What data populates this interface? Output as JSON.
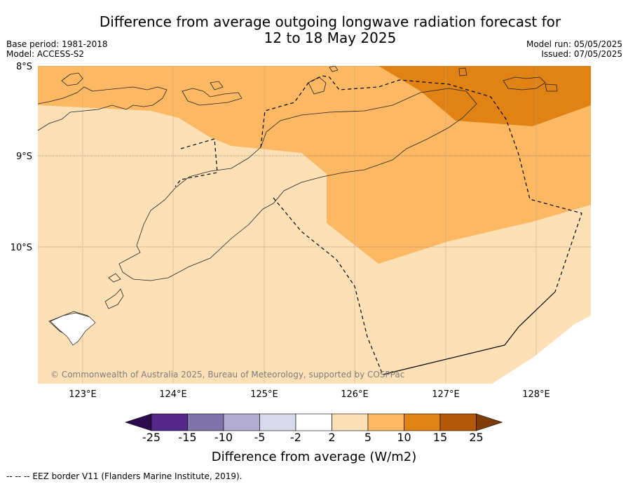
{
  "title_line1": "Difference from average outgoing longwave radiation forecast for",
  "title_line2": "12 to 18 May 2025",
  "meta_left": {
    "base_period": "Base period: 1981-2018",
    "model": "Model: ACCESS-S2"
  },
  "meta_right": {
    "model_run": "Model run: 05/05/2025",
    "issued": "Issued: 07/05/2025"
  },
  "axes": {
    "lat_ticks": [
      "8°S",
      "9°S",
      "10°S"
    ],
    "lon_ticks": [
      "123°E",
      "124°E",
      "125°E",
      "126°E",
      "127°E",
      "128°E"
    ]
  },
  "copyright": "© Commonwealth of Australia 2025, Bureau of Meteorology, supported by COSPPac",
  "colorbar": {
    "labels": [
      "-25",
      "-15",
      "-10",
      "-5",
      "-2",
      "2",
      "5",
      "10",
      "15",
      "25"
    ],
    "colors": [
      "#2d0a4e",
      "#542788",
      "#8073ac",
      "#b2abd2",
      "#d8daeb",
      "#ffffff",
      "#fee0b6",
      "#fdb863",
      "#e08214",
      "#b35806",
      "#7f3b08"
    ],
    "title": "Difference from average (W/m2)"
  },
  "footnote": "--  --  -- EEZ border V11 (Flanders Marine Institute, 2019)."
}
